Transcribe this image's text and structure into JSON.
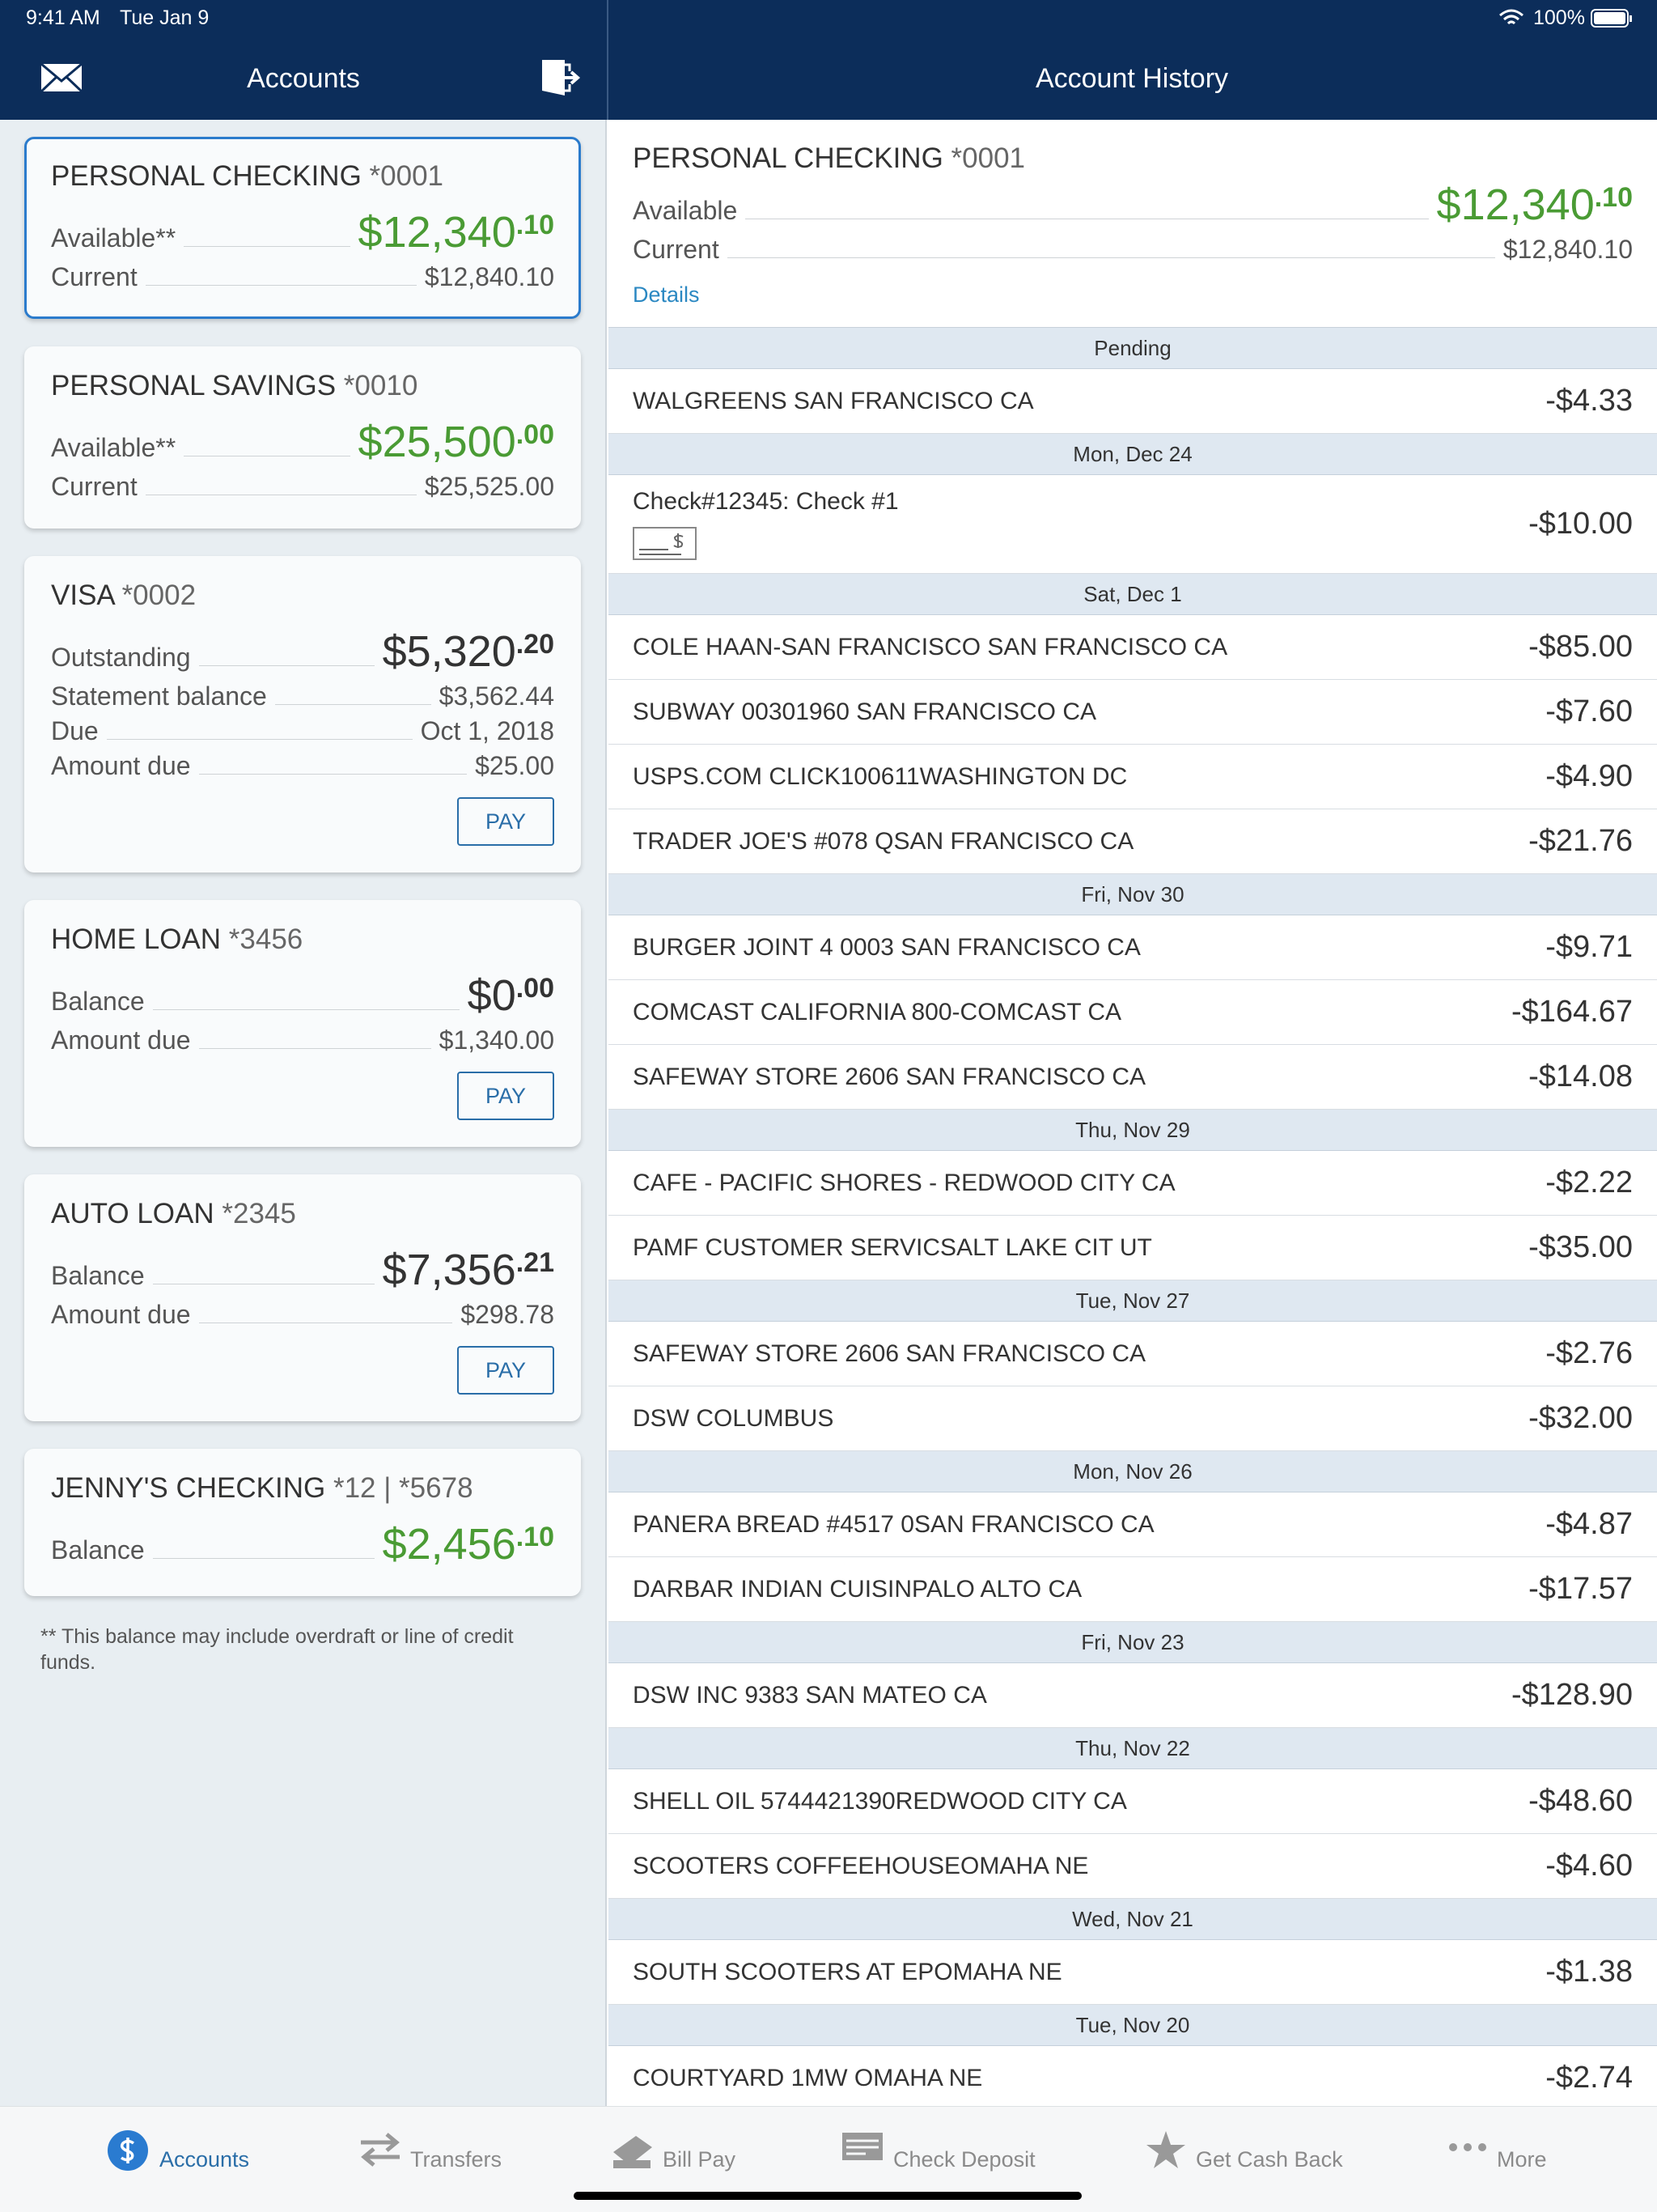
{
  "status_bar": {
    "time": "9:41 AM",
    "date": "Tue Jan 9",
    "battery": "100%"
  },
  "left_header": {
    "title": "Accounts"
  },
  "right_header": {
    "title": "Account History"
  },
  "accounts": [
    {
      "name": "PERSONAL CHECKING",
      "number": "*0001",
      "selected": true,
      "color": "#4a9b34",
      "rows": [
        {
          "label": "Available**",
          "whole": "$12,340",
          "cents": ".10"
        },
        {
          "label": "Current",
          "amount": "$12,840.10"
        }
      ]
    },
    {
      "name": "PERSONAL SAVINGS",
      "number": "*0010",
      "color": "#4a9b34",
      "rows": [
        {
          "label": "Available**",
          "whole": "$25,500",
          "cents": ".00"
        },
        {
          "label": "Current",
          "amount": "$25,525.00"
        }
      ]
    },
    {
      "name": "VISA",
      "number": "*0002",
      "color": "#333333",
      "button": "PAY",
      "rows": [
        {
          "label": "Outstanding",
          "whole": "$5,320",
          "cents": ".20"
        },
        {
          "label": "Statement balance",
          "amount": "$3,562.44"
        },
        {
          "label": "Due",
          "amount": "Oct 1, 2018"
        },
        {
          "label": "Amount due",
          "amount": "$25.00"
        }
      ]
    },
    {
      "name": "HOME LOAN",
      "number": "*3456",
      "color": "#333333",
      "button": "PAY",
      "rows": [
        {
          "label": "Balance",
          "whole": "$0",
          "cents": ".00"
        },
        {
          "label": "Amount due",
          "amount": "$1,340.00"
        }
      ]
    },
    {
      "name": "AUTO LOAN",
      "number": "*2345",
      "color": "#333333",
      "button": "PAY",
      "rows": [
        {
          "label": "Balance",
          "whole": "$7,356",
          "cents": ".21"
        },
        {
          "label": "Amount due",
          "amount": "$298.78"
        }
      ]
    },
    {
      "name": "JENNY'S CHECKING",
      "number": "*12 | *5678",
      "color": "#4a9b34",
      "rows": [
        {
          "label": "Balance",
          "whole": "$2,456",
          "cents": ".10"
        }
      ]
    }
  ],
  "footnote": "** This balance may include overdraft or line of credit funds.",
  "history": {
    "account_name": "PERSONAL CHECKING",
    "account_number": "*0001",
    "available_label": "Available",
    "available_whole": "$12,340",
    "available_cents": ".10",
    "current_label": "Current",
    "current_amount": "$12,840.10",
    "details": "Details",
    "groups": [
      {
        "date": "Pending",
        "items": [
          {
            "desc": "WALGREENS SAN FRANCISCO CA",
            "amount": "-$4.33"
          }
        ]
      },
      {
        "date": "Mon, Dec 24",
        "items": [
          {
            "desc": "Check#12345: Check #1",
            "amount": "-$10.00",
            "check": true
          }
        ]
      },
      {
        "date": "Sat, Dec 1",
        "items": [
          {
            "desc": "COLE HAAN-SAN FRANCISCO SAN FRANCISCO CA",
            "amount": "-$85.00"
          },
          {
            "desc": "SUBWAY 00301960 SAN FRANCISCO CA",
            "amount": "-$7.60"
          },
          {
            "desc": "USPS.COM CLICK100611WASHINGTON DC",
            "amount": "-$4.90"
          },
          {
            "desc": "TRADER JOE'S #078 QSAN FRANCISCO CA",
            "amount": "-$21.76"
          }
        ]
      },
      {
        "date": "Fri, Nov 30",
        "items": [
          {
            "desc": "BURGER JOINT 4 0003 SAN FRANCISCO CA",
            "amount": "-$9.71"
          },
          {
            "desc": "COMCAST CALIFORNIA 800-COMCAST CA",
            "amount": "-$164.67"
          },
          {
            "desc": "SAFEWAY STORE 2606 SAN FRANCISCO CA",
            "amount": "-$14.08"
          }
        ]
      },
      {
        "date": "Thu, Nov 29",
        "items": [
          {
            "desc": "CAFE - PACIFIC SHORES - REDWOOD CITY CA",
            "amount": "-$2.22"
          },
          {
            "desc": "PAMF CUSTOMER SERVICSALT LAKE CIT UT",
            "amount": "-$35.00"
          }
        ]
      },
      {
        "date": "Tue, Nov 27",
        "items": [
          {
            "desc": "SAFEWAY STORE 2606 SAN FRANCISCO CA",
            "amount": "-$2.76"
          },
          {
            "desc": "DSW COLUMBUS",
            "amount": "-$32.00"
          }
        ]
      },
      {
        "date": "Mon, Nov 26",
        "items": [
          {
            "desc": "PANERA BREAD #4517 0SAN FRANCISCO CA",
            "amount": "-$4.87"
          },
          {
            "desc": "DARBAR INDIAN CUISINPALO ALTO CA",
            "amount": "-$17.57"
          }
        ]
      },
      {
        "date": "Fri, Nov 23",
        "items": [
          {
            "desc": "DSW INC 9383 SAN MATEO CA",
            "amount": "-$128.90"
          }
        ]
      },
      {
        "date": "Thu, Nov 22",
        "items": [
          {
            "desc": "SHELL OIL 5744421390REDWOOD CITY CA",
            "amount": "-$48.60"
          },
          {
            "desc": "SCOOTERS COFFEEHOUSEOMAHA NE",
            "amount": "-$4.60"
          }
        ]
      },
      {
        "date": "Wed, Nov 21",
        "items": [
          {
            "desc": "SOUTH SCOOTERS AT EPOMAHA NE",
            "amount": "-$1.38"
          }
        ]
      },
      {
        "date": "Tue, Nov 20",
        "items": [
          {
            "desc": "COURTYARD 1MW OMAHA NE",
            "amount": "-$2.74"
          }
        ]
      }
    ]
  },
  "tabs": [
    {
      "label": "Accounts"
    },
    {
      "label": "Transfers"
    },
    {
      "label": "Bill Pay"
    },
    {
      "label": "Check Deposit"
    },
    {
      "label": "Get Cash Back"
    },
    {
      "label": "More"
    }
  ]
}
